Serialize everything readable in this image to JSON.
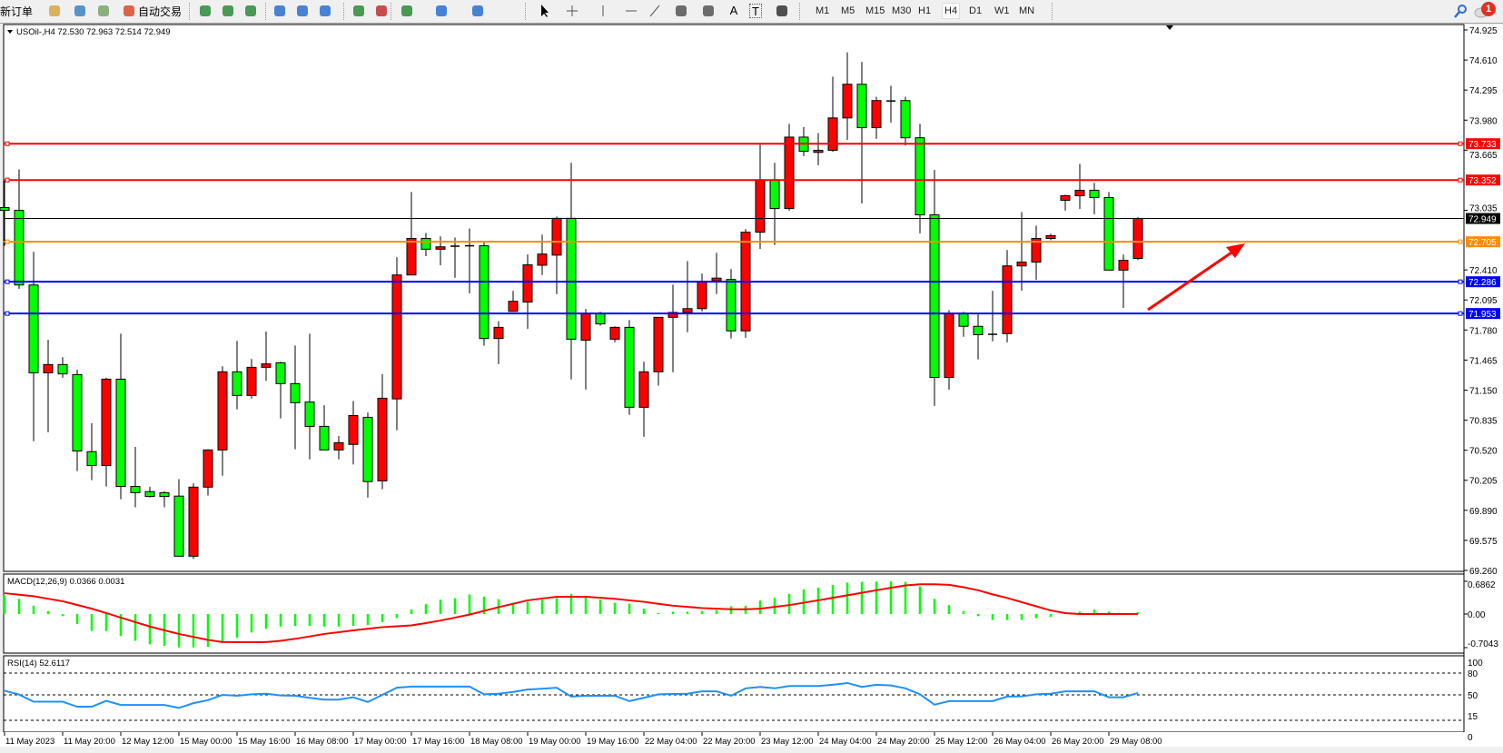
{
  "toolbar": {
    "new_order_label": "新订单",
    "auto_trading_label": "自动交易",
    "icons": [
      "market-watch-icon",
      "data-window-icon",
      "navigator-icon",
      "auto-trading-icon",
      "bar-chart-icon",
      "candlestick-icon",
      "line-chart-icon",
      "zoom-in-icon",
      "zoom-out-icon",
      "tile-windows-icon",
      "chart-shift-icon",
      "auto-scroll-icon",
      "indicators-icon",
      "periods-icon",
      "templates-icon",
      "cursor-icon",
      "crosshair-icon",
      "vertical-line-icon",
      "horizontal-line-icon",
      "trendline-icon",
      "equidistant-channel-icon",
      "fibonacci-icon",
      "text-icon",
      "text-label-icon",
      "arrows-icon"
    ],
    "text_tool_label": "A",
    "label_tool_label": "T",
    "timeframes": [
      "M1",
      "M5",
      "M15",
      "M30",
      "H1",
      "H4",
      "D1",
      "W1",
      "MN"
    ],
    "active_timeframe": "H4",
    "notification_count": "1"
  },
  "chart": {
    "header": "USOil-,H4  72.530 72.963 72.514 72.949",
    "macd_label": "MACD(12,26,9) 0.0366 0.0031",
    "rsi_label": "RSI(14) 52.6117"
  },
  "chart_data": {
    "type": "candlestick",
    "symbol": "USOil-",
    "timeframe": "H4",
    "bull_color": "#ff0000",
    "bear_color": "#00ff00",
    "ylim": [
      69.26,
      74.925
    ],
    "y_ticks": [
      "74.925",
      "74.610",
      "74.295",
      "73.980",
      "73.665",
      "73.035",
      "72.410",
      "72.095",
      "71.780",
      "71.465",
      "71.150",
      "70.835",
      "70.520",
      "70.205",
      "69.890",
      "69.575",
      "69.260"
    ],
    "x_tick_labels": [
      "11 May 2023",
      "11 May 20:00",
      "12 May 12:00",
      "15 May 00:00",
      "15 May 16:00",
      "16 May 08:00",
      "17 May 00:00",
      "17 May 16:00",
      "18 May 08:00",
      "19 May 00:00",
      "19 May 16:00",
      "22 May 04:00",
      "22 May 20:00",
      "23 May 12:00",
      "24 May 04:00",
      "24 May 20:00",
      "25 May 12:00",
      "26 May 04:00",
      "26 May 20:00",
      "29 May 08:00"
    ],
    "bars_per_x_label": 4,
    "ohlc": [
      [
        73.063,
        73.347,
        72.663,
        73.034
      ],
      [
        73.034,
        73.464,
        72.212,
        72.252
      ],
      [
        72.252,
        72.601,
        70.614,
        71.331
      ],
      [
        71.331,
        71.677,
        70.708,
        71.418
      ],
      [
        71.418,
        71.495,
        71.28,
        71.32
      ],
      [
        71.313,
        71.364,
        70.301,
        70.512
      ],
      [
        70.505,
        70.803,
        70.206,
        70.359
      ],
      [
        70.359,
        71.28,
        70.14,
        71.265
      ],
      [
        71.265,
        71.742,
        70.006,
        70.14
      ],
      [
        70.14,
        70.555,
        69.922,
        70.075
      ],
      [
        70.086,
        70.137,
        70.024,
        70.035
      ],
      [
        70.075,
        70.09,
        69.922,
        70.035
      ],
      [
        70.039,
        70.217,
        69.409,
        69.409
      ],
      [
        69.409,
        70.173,
        69.38,
        70.133
      ],
      [
        70.133,
        70.53,
        70.046,
        70.523
      ],
      [
        70.523,
        71.4,
        70.253,
        71.342
      ],
      [
        71.342,
        71.666,
        70.949,
        71.094
      ],
      [
        71.094,
        71.476,
        71.061,
        71.389
      ],
      [
        71.389,
        71.764,
        71.247,
        71.425
      ],
      [
        71.436,
        71.447,
        70.854,
        71.218
      ],
      [
        71.218,
        71.618,
        70.53,
        71.018
      ],
      [
        71.025,
        71.742,
        70.424,
        70.77
      ],
      [
        70.77,
        70.992,
        70.523,
        70.523
      ],
      [
        70.523,
        70.668,
        70.424,
        70.599
      ],
      [
        70.581,
        71.036,
        70.37,
        70.883
      ],
      [
        70.865,
        70.916,
        70.024,
        70.191
      ],
      [
        70.199,
        71.316,
        70.111,
        71.065
      ],
      [
        71.058,
        72.543,
        70.73,
        72.357
      ],
      [
        72.357,
        73.227,
        72.357,
        72.74
      ],
      [
        72.74,
        72.798,
        72.554,
        72.627
      ],
      [
        72.627,
        72.761,
        72.459,
        72.652
      ],
      [
        72.659,
        72.75,
        72.328,
        72.659
      ],
      [
        72.663,
        72.845,
        72.164,
        72.663
      ],
      [
        72.663,
        72.699,
        71.615,
        71.691
      ],
      [
        71.691,
        71.873,
        71.422,
        71.808
      ],
      [
        71.975,
        72.19,
        71.975,
        72.081
      ],
      [
        72.073,
        72.572,
        71.793,
        72.463
      ],
      [
        72.459,
        72.779,
        72.357,
        72.576
      ],
      [
        72.565,
        72.969,
        72.157,
        72.951
      ],
      [
        72.951,
        73.533,
        71.262,
        71.684
      ],
      [
        71.673,
        72.001,
        71.156,
        71.95
      ],
      [
        71.95,
        71.971,
        71.826,
        71.844
      ],
      [
        71.684,
        71.819,
        71.651,
        71.808
      ],
      [
        71.808,
        71.884,
        70.89,
        70.97
      ],
      [
        70.97,
        71.447,
        70.661,
        71.342
      ],
      [
        71.342,
        71.913,
        71.196,
        71.913
      ],
      [
        71.913,
        72.255,
        71.338,
        71.964
      ],
      [
        71.964,
        72.503,
        71.757,
        72.004
      ],
      [
        72.004,
        72.372,
        71.975,
        72.284
      ],
      [
        72.295,
        72.59,
        72.157,
        72.324
      ],
      [
        72.31,
        72.419,
        71.691,
        71.771
      ],
      [
        71.771,
        72.838,
        71.698,
        72.805
      ],
      [
        72.805,
        73.722,
        72.63,
        73.355
      ],
      [
        73.355,
        73.533,
        72.67,
        73.053
      ],
      [
        73.053,
        73.941,
        73.031,
        73.802
      ],
      [
        73.802,
        73.908,
        73.602,
        73.653
      ],
      [
        73.642,
        73.846,
        73.507,
        73.664
      ],
      [
        73.664,
        74.436,
        73.649,
        74.003
      ],
      [
        74.003,
        74.691,
        73.773,
        74.356
      ],
      [
        74.356,
        74.589,
        73.107,
        73.901
      ],
      [
        73.901,
        74.225,
        73.784,
        74.185
      ],
      [
        74.181,
        74.341,
        73.955,
        74.181
      ],
      [
        74.185,
        74.225,
        73.715,
        73.795
      ],
      [
        73.795,
        73.941,
        72.794,
        72.987
      ],
      [
        72.987,
        73.457,
        70.985,
        71.283
      ],
      [
        71.283,
        71.986,
        71.156,
        71.953
      ],
      [
        71.953,
        71.971,
        71.709,
        71.819
      ],
      [
        71.819,
        71.953,
        71.473,
        71.731
      ],
      [
        71.735,
        72.19,
        71.662,
        71.735
      ],
      [
        71.742,
        72.619,
        71.651,
        72.452
      ],
      [
        72.452,
        73.016,
        72.193,
        72.492
      ],
      [
        72.492,
        72.874,
        72.306,
        72.74
      ],
      [
        72.74,
        72.79,
        72.721,
        72.769
      ],
      [
        73.14,
        73.198,
        73.031,
        73.187
      ],
      [
        73.187,
        73.522,
        73.049,
        73.245
      ],
      [
        73.245,
        73.322,
        72.994,
        73.169
      ],
      [
        73.169,
        73.227,
        72.408,
        72.408
      ],
      [
        72.408,
        72.572,
        72.011,
        72.51
      ],
      [
        72.53,
        72.963,
        72.514,
        72.949
      ]
    ],
    "levels": [
      {
        "price": 73.733,
        "label": "73.733",
        "color": "#ff0000"
      },
      {
        "price": 73.352,
        "label": "73.352",
        "color": "#ff0000"
      },
      {
        "price": 72.949,
        "label": "72.949",
        "color": "#000000",
        "bid": true
      },
      {
        "price": 72.705,
        "label": "72.705",
        "color": "#ff8c00"
      },
      {
        "price": 72.286,
        "label": "72.286",
        "color": "#0000ff"
      },
      {
        "price": 71.953,
        "label": "71.953",
        "color": "#0000ff"
      }
    ],
    "annotation_arrow_color": "#ff0000",
    "macd": {
      "ylim": [
        -0.7043,
        0.6862
      ],
      "y_ticks": [
        "0.6862",
        "0.00",
        "-0.7043"
      ],
      "histogram_color": "#00ff00",
      "signal_color": "#ff0000",
      "histogram": [
        0.393,
        0.318,
        0.175,
        0.062,
        -0.044,
        -0.212,
        -0.355,
        -0.355,
        -0.462,
        -0.562,
        -0.636,
        -0.668,
        -0.7,
        -0.7,
        -0.686,
        -0.587,
        -0.499,
        -0.387,
        -0.312,
        -0.262,
        -0.25,
        -0.25,
        -0.262,
        -0.262,
        -0.25,
        -0.231,
        -0.168,
        -0.087,
        0.1,
        0.206,
        0.3,
        0.331,
        0.412,
        0.362,
        0.312,
        0.237,
        0.256,
        0.3,
        0.331,
        0.424,
        0.349,
        0.3,
        0.237,
        0.218,
        0.112,
        0.019,
        0.05,
        0.05,
        0.062,
        0.081,
        0.162,
        0.175,
        0.281,
        0.337,
        0.424,
        0.518,
        0.555,
        0.611,
        0.66,
        0.675,
        0.68,
        0.686,
        0.675,
        0.58,
        0.318,
        0.187,
        0.062,
        -0.044,
        -0.125,
        -0.125,
        -0.125,
        -0.087,
        -0.062,
        0.0,
        0.05,
        0.094,
        0.05,
        0.012,
        0.0366
      ],
      "signal": [
        0.437,
        0.405,
        0.374,
        0.32,
        0.268,
        0.19,
        0.112,
        0.02,
        -0.075,
        -0.17,
        -0.262,
        -0.34,
        -0.418,
        -0.48,
        -0.543,
        -0.587,
        -0.59,
        -0.59,
        -0.587,
        -0.562,
        -0.52,
        -0.47,
        -0.418,
        -0.38,
        -0.343,
        -0.31,
        -0.275,
        -0.256,
        -0.237,
        -0.19,
        -0.137,
        -0.075,
        -0.012,
        0.066,
        0.144,
        0.215,
        0.287,
        0.325,
        0.362,
        0.362,
        0.362,
        0.34,
        0.318,
        0.287,
        0.256,
        0.215,
        0.175,
        0.15,
        0.125,
        0.112,
        0.1,
        0.1,
        0.112,
        0.15,
        0.187,
        0.237,
        0.287,
        0.34,
        0.393,
        0.446,
        0.499,
        0.55,
        0.599,
        0.624,
        0.624,
        0.611,
        0.562,
        0.499,
        0.412,
        0.337,
        0.25,
        0.162,
        0.075,
        0.02,
        0.0,
        0.0,
        0.0,
        0.0,
        0.0031
      ]
    },
    "rsi": {
      "ylim": [
        0,
        100
      ],
      "y_ticks": [
        "100",
        "80",
        "50",
        "15",
        "0"
      ],
      "levels": [
        80,
        50,
        15
      ],
      "color": "#1e90ff",
      "values": [
        55.7,
        50.4,
        40.6,
        40.6,
        40.6,
        33.7,
        33.7,
        41.8,
        36.1,
        36.1,
        36.1,
        36.1,
        32.0,
        38.6,
        42.7,
        50.0,
        48.8,
        50.8,
        51.6,
        49.2,
        48.8,
        45.9,
        43.5,
        43.5,
        46.7,
        40.2,
        50.0,
        59.8,
        61.4,
        61.4,
        61.4,
        61.4,
        61.4,
        50.8,
        51.6,
        54.1,
        57.3,
        58.5,
        59.8,
        47.6,
        48.8,
        48.8,
        48.8,
        41.4,
        45.9,
        50.8,
        51.2,
        51.6,
        54.9,
        54.9,
        48.8,
        59.0,
        61.0,
        59.0,
        62.2,
        62.2,
        62.2,
        63.9,
        66.3,
        61.0,
        63.9,
        63.0,
        59.0,
        50.8,
        36.5,
        41.4,
        41.4,
        41.4,
        41.4,
        47.6,
        48.0,
        50.8,
        51.6,
        54.9,
        54.9,
        54.9,
        46.7,
        46.7,
        52.6117
      ]
    }
  }
}
